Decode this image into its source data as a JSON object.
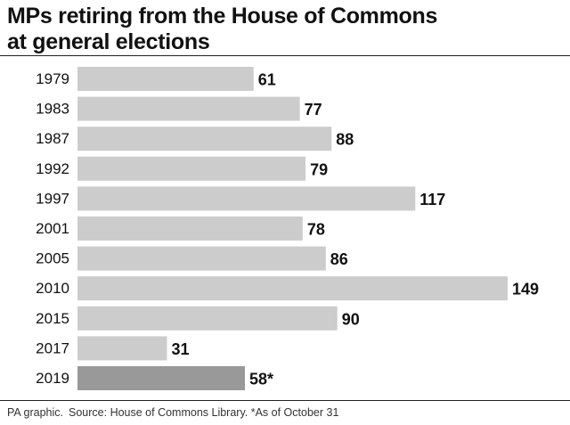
{
  "title_line1": "MPs retiring from the House of Commons",
  "title_line2": "at general elections",
  "footer": {
    "credit": "PA graphic.",
    "source": "Source: House of Commons Library. *As of October 31"
  },
  "colors": {
    "bar": "#cccccc",
    "highlight_bar": "#999999",
    "text": "#111111"
  },
  "chart_data": {
    "type": "bar",
    "orientation": "horizontal",
    "title": "MPs retiring from the House of Commons at general elections",
    "categories": [
      "1979",
      "1983",
      "1987",
      "1992",
      "1997",
      "2001",
      "2005",
      "2010",
      "2015",
      "2017",
      "2019"
    ],
    "values": [
      61,
      77,
      88,
      79,
      117,
      78,
      86,
      149,
      90,
      31,
      58
    ],
    "data_labels": [
      "61",
      "77",
      "88",
      "79",
      "117",
      "78",
      "86",
      "149",
      "90",
      "31",
      "58*"
    ],
    "highlight_index": 10,
    "xlim": [
      0,
      149
    ],
    "grid": false,
    "legend": "none"
  }
}
